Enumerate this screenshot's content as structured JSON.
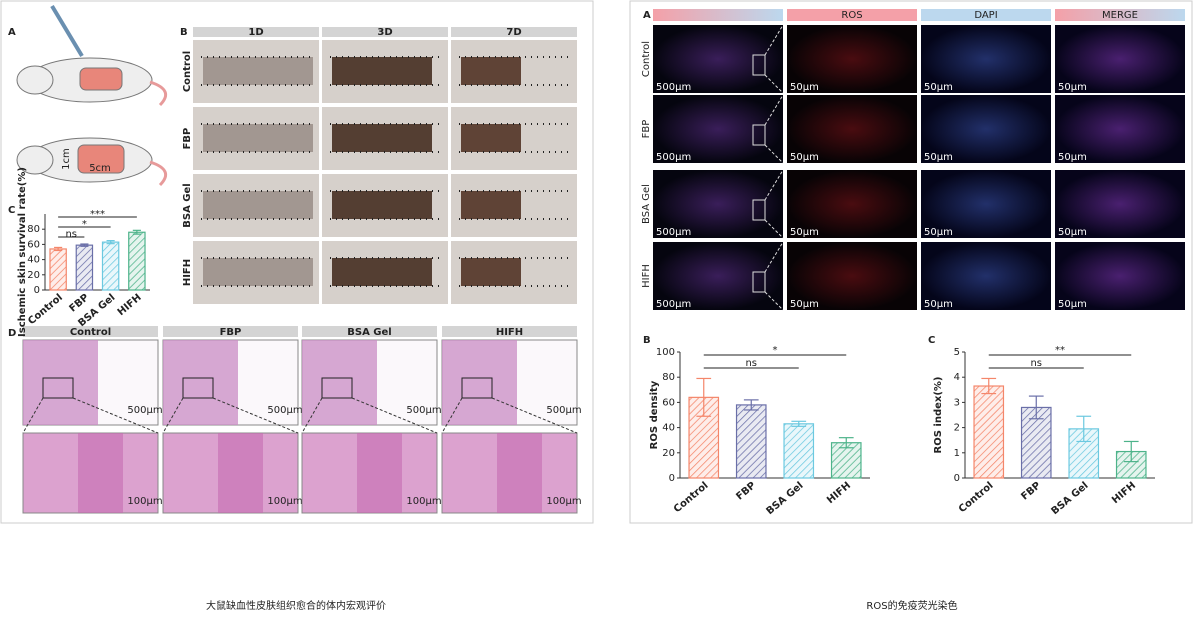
{
  "left_figure": {
    "panel_labels": [
      "A",
      "B",
      "C",
      "D"
    ],
    "mouse_dims": [
      "1cm",
      "5cm"
    ],
    "photo_columns": [
      "1D",
      "3D",
      "7D"
    ],
    "photo_rows": [
      "Control",
      "FBP",
      "BSA Gel",
      "HIFH"
    ],
    "histology_columns": [
      "Control",
      "FBP",
      "BSA Gel",
      "HIFH"
    ],
    "scale_bars": [
      "500μm",
      "100μm"
    ],
    "caption": "大鼠缺血性皮肤组织愈合的体内宏观评价"
  },
  "right_figure": {
    "panel_labels": [
      "A",
      "B",
      "C"
    ],
    "channel_columns": [
      "ROS",
      "DAPI",
      "MERGE"
    ],
    "rows": [
      "Control",
      "FBP",
      "BSA Gel",
      "HIFH"
    ],
    "scale_bars": [
      "500μm",
      "50μm"
    ],
    "caption": "ROS的免疫荧光染色"
  },
  "chart_data": [
    {
      "type": "bar",
      "ylabel": "Ischemic skin survival rate(%)",
      "categories": [
        "Control",
        "FBP",
        "BSA Gel",
        "HIFH"
      ],
      "values": [
        54,
        59,
        63,
        76
      ],
      "errors": [
        2,
        1.5,
        2,
        2.5
      ],
      "colors": [
        "#f4866a",
        "#6a6fa8",
        "#6cc9e0",
        "#4db38a"
      ],
      "ylim": [
        0,
        100
      ],
      "yticks": [
        0,
        20,
        40,
        60,
        80
      ],
      "annotations": [
        "ns",
        "*",
        "***"
      ]
    },
    {
      "type": "bar",
      "ylabel": "ROS density",
      "categories": [
        "Control",
        "FBP",
        "BSA Gel",
        "HIFH"
      ],
      "values": [
        64,
        58,
        43,
        28
      ],
      "errors": [
        15,
        4,
        2,
        4
      ],
      "colors": [
        "#f4866a",
        "#6a6fa8",
        "#6cc9e0",
        "#4db38a"
      ],
      "ylim": [
        0,
        100
      ],
      "yticks": [
        0,
        20,
        40,
        60,
        80,
        100
      ],
      "annotations": [
        "ns",
        "*"
      ]
    },
    {
      "type": "bar",
      "ylabel": "ROS index(%)",
      "categories": [
        "Control",
        "FBP",
        "BSA Gel",
        "HIFH"
      ],
      "values": [
        3.65,
        2.8,
        1.95,
        1.05
      ],
      "errors": [
        0.3,
        0.45,
        0.5,
        0.4
      ],
      "colors": [
        "#f4866a",
        "#6a6fa8",
        "#6cc9e0",
        "#4db38a"
      ],
      "ylim": [
        0,
        5
      ],
      "yticks": [
        0,
        1,
        2,
        3,
        4,
        5
      ],
      "annotations": [
        "ns",
        "**"
      ]
    }
  ]
}
